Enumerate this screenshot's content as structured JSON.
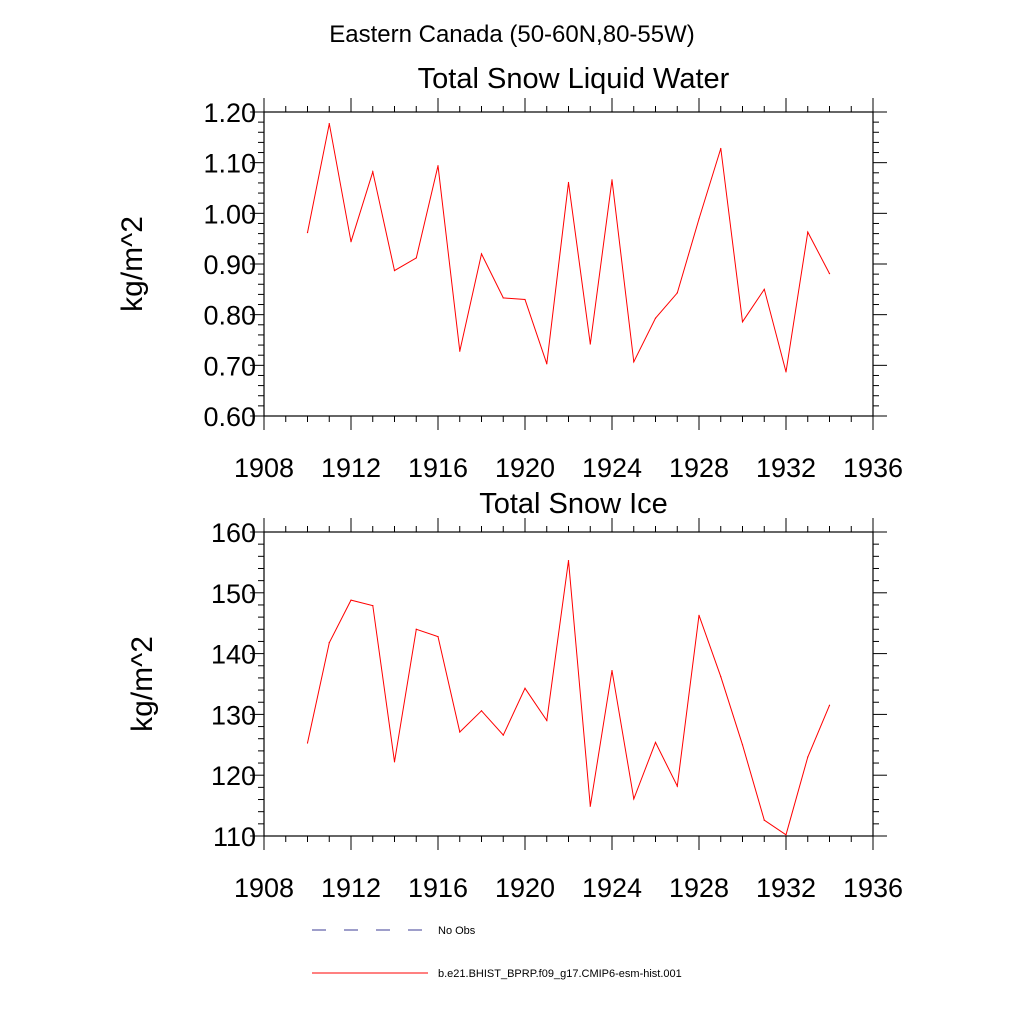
{
  "figure": {
    "suptitle": "Eastern Canada (50-60N,80-55W)"
  },
  "colors": {
    "model_line": "#ff0000",
    "obs_line": "#3c3c96",
    "axis": "#000000"
  },
  "chart_data": [
    {
      "type": "line",
      "title": "Total Snow Liquid Water",
      "xlabel": "",
      "ylabel": "kg/m^2",
      "xlim": [
        1908,
        1936
      ],
      "ylim": [
        0.6,
        1.2
      ],
      "xticks": [
        "1908",
        "1912",
        "1916",
        "1920",
        "1924",
        "1928",
        "1932",
        "1936"
      ],
      "yticks": [
        "0.60",
        "0.70",
        "0.80",
        "0.90",
        "1.00",
        "1.10",
        "1.20"
      ],
      "grid": false,
      "series": [
        {
          "name": "b.e21.BHIST_BPRP.f09_g17.CMIP6-esm-hist.001",
          "x": [
            1910,
            1911,
            1912,
            1913,
            1914,
            1915,
            1916,
            1917,
            1918,
            1919,
            1920,
            1921,
            1922,
            1923,
            1924,
            1925,
            1926,
            1927,
            1928,
            1929,
            1930,
            1931,
            1932,
            1933,
            1934
          ],
          "values": [
            0.962,
            1.177,
            0.944,
            1.082,
            0.887,
            0.912,
            1.094,
            0.728,
            0.92,
            0.833,
            0.83,
            0.703,
            1.061,
            0.742,
            1.066,
            0.707,
            0.793,
            0.843,
            0.989,
            1.128,
            0.786,
            0.85,
            0.687,
            0.963,
            0.881
          ]
        }
      ]
    },
    {
      "type": "line",
      "title": "Total Snow Ice",
      "xlabel": "",
      "ylabel": "kg/m^2",
      "xlim": [
        1908,
        1936
      ],
      "ylim": [
        110,
        160
      ],
      "xticks": [
        "1908",
        "1912",
        "1916",
        "1920",
        "1924",
        "1928",
        "1932",
        "1936"
      ],
      "yticks": [
        "110",
        "120",
        "130",
        "140",
        "150",
        "160"
      ],
      "grid": false,
      "series": [
        {
          "name": "b.e21.BHIST_BPRP.f09_g17.CMIP6-esm-hist.001",
          "x": [
            1910,
            1911,
            1912,
            1913,
            1914,
            1915,
            1916,
            1917,
            1918,
            1919,
            1920,
            1921,
            1922,
            1923,
            1924,
            1925,
            1926,
            1927,
            1928,
            1929,
            1930,
            1931,
            1932,
            1933,
            1934
          ],
          "values": [
            125.3,
            141.8,
            148.8,
            147.9,
            122.2,
            144.0,
            142.8,
            127.1,
            130.6,
            126.6,
            134.3,
            129.0,
            155.3,
            114.9,
            137.2,
            116.1,
            125.4,
            118.2,
            146.3,
            136.2,
            125.0,
            112.6,
            110.2,
            123.0,
            131.5
          ]
        }
      ]
    }
  ],
  "legend": {
    "position": "bottom",
    "entries": [
      {
        "label": "No Obs",
        "style": "dashed"
      },
      {
        "label": "b.e21.BHIST_BPRP.f09_g17.CMIP6-esm-hist.001",
        "style": "solid"
      }
    ]
  }
}
